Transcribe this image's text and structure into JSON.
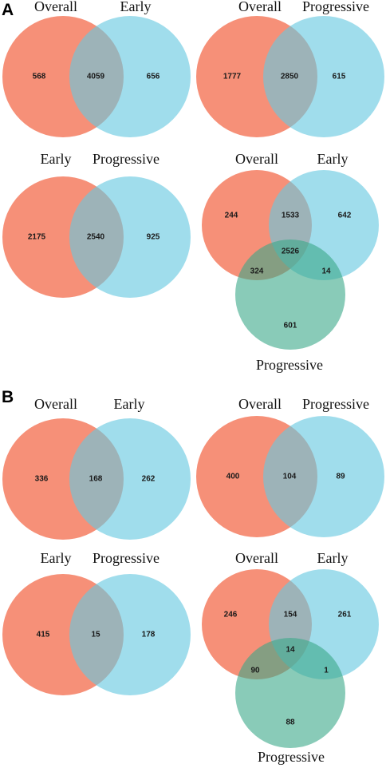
{
  "colors": {
    "overall": "#f4785a",
    "early": "#66c8e0",
    "progressive": "#3aa888",
    "overlap_two": "#c4b2aa"
  },
  "panels": [
    {
      "letter": "A",
      "diagrams": [
        {
          "type": "two-set",
          "sets": [
            "Overall",
            "Early"
          ],
          "counts": {
            "left_only": "568",
            "both": "4059",
            "right_only": "656"
          }
        },
        {
          "type": "two-set",
          "sets": [
            "Overall",
            "Progressive"
          ],
          "counts": {
            "left_only": "1777",
            "both": "2850",
            "right_only": "615"
          }
        },
        {
          "type": "two-set",
          "sets": [
            "Early",
            "Progressive"
          ],
          "counts": {
            "left_only": "2175",
            "both": "2540",
            "right_only": "925"
          }
        },
        {
          "type": "three-set",
          "sets": [
            "Overall",
            "Early",
            "Progressive"
          ],
          "counts": {
            "a_only": "244",
            "ab": "1533",
            "b_only": "642",
            "abc": "2526",
            "ac": "324",
            "bc": "14",
            "c_only": "601"
          }
        }
      ]
    },
    {
      "letter": "B",
      "diagrams": [
        {
          "type": "two-set",
          "sets": [
            "Overall",
            "Early"
          ],
          "counts": {
            "left_only": "336",
            "both": "168",
            "right_only": "262"
          }
        },
        {
          "type": "two-set",
          "sets": [
            "Overall",
            "Progressive"
          ],
          "counts": {
            "left_only": "400",
            "both": "104",
            "right_only": "89"
          }
        },
        {
          "type": "two-set",
          "sets": [
            "Early",
            "Progressive"
          ],
          "counts": {
            "left_only": "415",
            "both": "15",
            "right_only": "178"
          }
        },
        {
          "type": "three-set",
          "sets": [
            "Overall",
            "Early",
            "Progressive"
          ],
          "counts": {
            "a_only": "246",
            "ab": "154",
            "b_only": "261",
            "abc": "14",
            "ac": "90",
            "bc": "1",
            "c_only": "88"
          }
        }
      ]
    }
  ]
}
